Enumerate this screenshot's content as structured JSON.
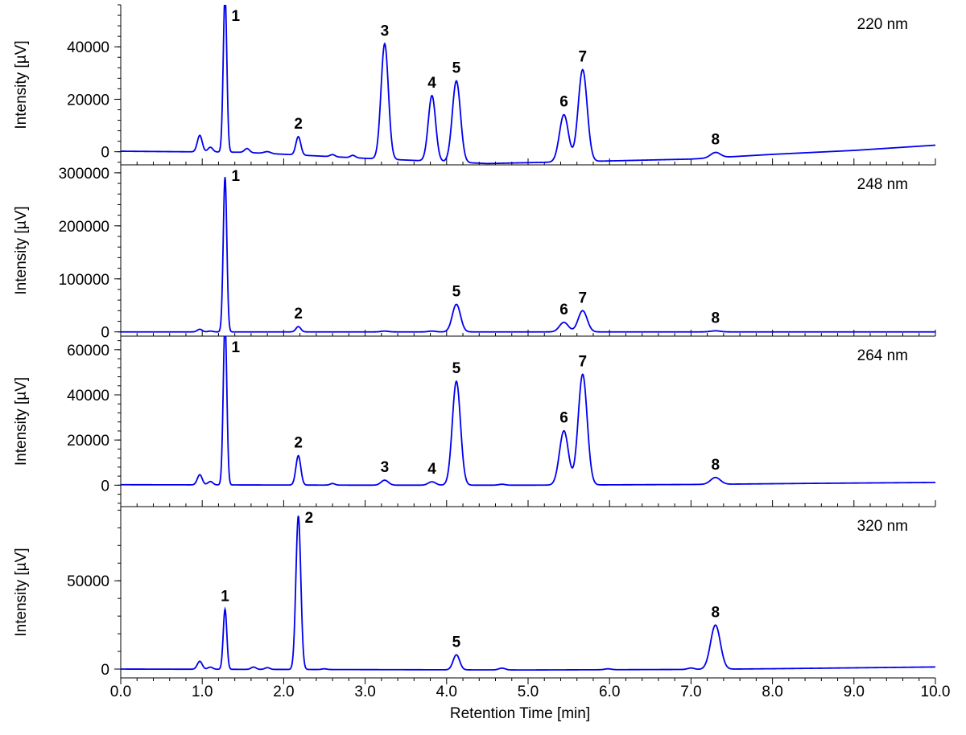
{
  "chart_data": {
    "type": "line",
    "xlabel": "Retention Time [min]",
    "xlim": [
      0,
      10
    ],
    "xticks": [
      "0.0",
      "1.0",
      "2.0",
      "3.0",
      "4.0",
      "5.0",
      "6.0",
      "7.0",
      "8.0",
      "9.0",
      "10.0"
    ],
    "line_color": "#0000ee",
    "panels": [
      {
        "name": "220 nm",
        "ylabel": "Intensity [µV]",
        "ylim": [
          -5000,
          56000
        ],
        "yticks": [
          0,
          20000,
          40000
        ],
        "ytick_labels": [
          "0",
          "20000",
          "40000"
        ],
        "baseline": [
          [
            0,
            200
          ],
          [
            1.5,
            -200
          ],
          [
            3.0,
            -2500
          ],
          [
            4.5,
            -4500
          ],
          [
            6.0,
            -3500
          ],
          [
            7.0,
            -2800
          ],
          [
            8.0,
            -1000
          ],
          [
            9.0,
            500
          ],
          [
            10.0,
            2500
          ]
        ],
        "peaks": [
          {
            "label": "",
            "rt": 0.97,
            "height": 6300,
            "width": 0.03
          },
          {
            "label": "",
            "rt": 1.1,
            "height": 1800,
            "width": 0.03
          },
          {
            "label": "1",
            "rt": 1.28,
            "height": 60000,
            "width": 0.022
          },
          {
            "label": "",
            "rt": 1.55,
            "height": 1500,
            "width": 0.03
          },
          {
            "label": "",
            "rt": 1.8,
            "height": 700,
            "width": 0.04
          },
          {
            "label": "2",
            "rt": 2.18,
            "height": 7000,
            "width": 0.03
          },
          {
            "label": "",
            "rt": 2.6,
            "height": 800,
            "width": 0.03
          },
          {
            "label": "",
            "rt": 2.85,
            "height": 900,
            "width": 0.03
          },
          {
            "label": "3",
            "rt": 3.24,
            "height": 44000,
            "width": 0.045
          },
          {
            "label": "4",
            "rt": 3.82,
            "height": 25000,
            "width": 0.045
          },
          {
            "label": "5",
            "rt": 4.12,
            "height": 31000,
            "width": 0.05
          },
          {
            "label": "6",
            "rt": 5.44,
            "height": 18000,
            "width": 0.055
          },
          {
            "label": "7",
            "rt": 5.67,
            "height": 35000,
            "width": 0.055
          },
          {
            "label": "8",
            "rt": 7.3,
            "height": 2000,
            "width": 0.06
          }
        ]
      },
      {
        "name": "248 nm",
        "ylabel": "Intensity [µV]",
        "ylim": [
          -8000,
          315000
        ],
        "yticks": [
          0,
          100000,
          200000,
          300000
        ],
        "ytick_labels": [
          "0",
          "100000",
          "200000",
          "300000"
        ],
        "baseline": [
          [
            0,
            0
          ],
          [
            10.0,
            0
          ]
        ],
        "peaks": [
          {
            "label": "",
            "rt": 0.97,
            "height": 5000,
            "width": 0.03
          },
          {
            "label": "",
            "rt": 1.1,
            "height": 1500,
            "width": 0.03
          },
          {
            "label": "1",
            "rt": 1.28,
            "height": 292000,
            "width": 0.022
          },
          {
            "label": "2",
            "rt": 2.18,
            "height": 10000,
            "width": 0.03
          },
          {
            "label": "",
            "rt": 3.24,
            "height": 1500,
            "width": 0.045
          },
          {
            "label": "",
            "rt": 3.82,
            "height": 1500,
            "width": 0.045
          },
          {
            "label": "5",
            "rt": 4.12,
            "height": 52000,
            "width": 0.05
          },
          {
            "label": "6",
            "rt": 5.44,
            "height": 18000,
            "width": 0.055
          },
          {
            "label": "7",
            "rt": 5.67,
            "height": 40000,
            "width": 0.055
          },
          {
            "label": "8",
            "rt": 7.3,
            "height": 2000,
            "width": 0.06
          }
        ]
      },
      {
        "name": "264 nm",
        "ylabel": "Intensity [µV]",
        "ylim": [
          -9500,
          66000
        ],
        "yticks": [
          0,
          20000,
          40000,
          60000
        ],
        "ytick_labels": [
          "0",
          "20000",
          "40000",
          "60000"
        ],
        "baseline": [
          [
            0,
            200
          ],
          [
            3.0,
            0
          ],
          [
            5.0,
            0
          ],
          [
            7.0,
            300
          ],
          [
            8.5,
            800
          ],
          [
            10.0,
            1200
          ]
        ],
        "peaks": [
          {
            "label": "",
            "rt": 0.97,
            "height": 4500,
            "width": 0.03
          },
          {
            "label": "",
            "rt": 1.1,
            "height": 1500,
            "width": 0.03
          },
          {
            "label": "1",
            "rt": 1.28,
            "height": 72000,
            "width": 0.022
          },
          {
            "label": "2",
            "rt": 2.18,
            "height": 13000,
            "width": 0.03
          },
          {
            "label": "",
            "rt": 2.6,
            "height": 700,
            "width": 0.03
          },
          {
            "label": "3",
            "rt": 3.24,
            "height": 2200,
            "width": 0.045
          },
          {
            "label": "4",
            "rt": 3.82,
            "height": 1500,
            "width": 0.045
          },
          {
            "label": "5",
            "rt": 4.12,
            "height": 46000,
            "width": 0.05
          },
          {
            "label": "",
            "rt": 4.68,
            "height": 400,
            "width": 0.04
          },
          {
            "label": "6",
            "rt": 5.44,
            "height": 24000,
            "width": 0.055
          },
          {
            "label": "7",
            "rt": 5.67,
            "height": 49000,
            "width": 0.055
          },
          {
            "label": "8",
            "rt": 7.3,
            "height": 3000,
            "width": 0.06
          }
        ]
      },
      {
        "name": "320 nm",
        "ylabel": "Intensity [µV]",
        "ylim": [
          -5000,
          92000
        ],
        "yticks": [
          0,
          50000
        ],
        "ytick_labels": [
          "0",
          "50000"
        ],
        "baseline": [
          [
            0,
            0
          ],
          [
            5.0,
            -500
          ],
          [
            7.0,
            -200
          ],
          [
            8.0,
            200
          ],
          [
            10.0,
            1200
          ]
        ],
        "peaks": [
          {
            "label": "",
            "rt": 0.97,
            "height": 4500,
            "width": 0.03
          },
          {
            "label": "",
            "rt": 1.1,
            "height": 1200,
            "width": 0.03
          },
          {
            "label": "1",
            "rt": 1.28,
            "height": 34000,
            "width": 0.022
          },
          {
            "label": "",
            "rt": 1.63,
            "height": 1300,
            "width": 0.03
          },
          {
            "label": "",
            "rt": 1.8,
            "height": 1000,
            "width": 0.03
          },
          {
            "label": "2",
            "rt": 2.18,
            "height": 87000,
            "width": 0.03
          },
          {
            "label": "",
            "rt": 2.5,
            "height": 400,
            "width": 0.03
          },
          {
            "label": "5",
            "rt": 4.12,
            "height": 8500,
            "width": 0.04
          },
          {
            "label": "",
            "rt": 4.68,
            "height": 1000,
            "width": 0.04
          },
          {
            "label": "",
            "rt": 5.98,
            "height": 500,
            "width": 0.04
          },
          {
            "label": "",
            "rt": 7.0,
            "height": 800,
            "width": 0.04
          },
          {
            "label": "8",
            "rt": 7.3,
            "height": 25000,
            "width": 0.06
          }
        ]
      }
    ]
  }
}
